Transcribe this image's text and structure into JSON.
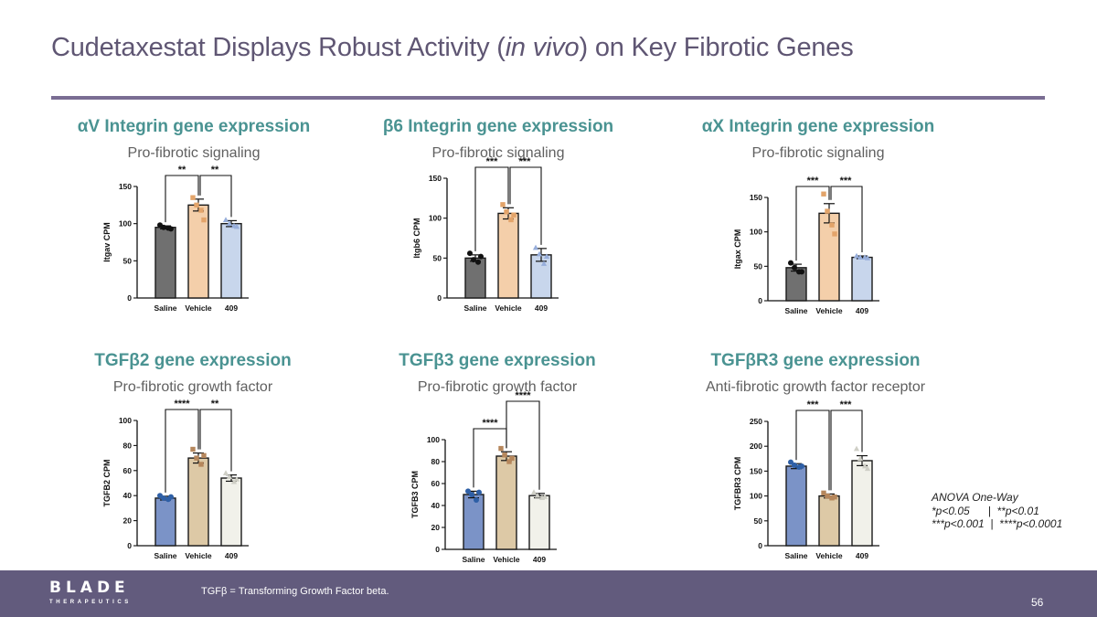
{
  "slide": {
    "title_before": "Cudetaxestat Displays Robust Activity (",
    "title_italic": "in vivo",
    "title_after": ") on Key Fibrotic Genes"
  },
  "panels": [
    {
      "title": "αV Integrin gene expression",
      "subtitle": "Pro-fibrotic signaling"
    },
    {
      "title": "β6 Integrin gene expression",
      "subtitle": "Pro-fibrotic signaling"
    },
    {
      "title": "αX Integrin gene expression",
      "subtitle": "Pro-fibrotic signaling"
    },
    {
      "title": "TGFβ2 gene expression",
      "subtitle": "Pro-fibrotic growth factor"
    },
    {
      "title": "TGFβ3 gene expression",
      "subtitle": "Pro-fibrotic growth factor"
    },
    {
      "title": "TGFβR3 gene expression",
      "subtitle": "Anti-fibrotic growth factor receptor"
    }
  ],
  "chart_data": [
    {
      "type": "bar",
      "ylabel": "Itgav CPM",
      "categories": [
        "Saline",
        "Vehicle",
        "409"
      ],
      "values": [
        95,
        125,
        100
      ],
      "errors": [
        2,
        8,
        4
      ],
      "points": [
        [
          98,
          95,
          94,
          93
        ],
        [
          135,
          125,
          118,
          105
        ],
        [
          105,
          100,
          97,
          96
        ]
      ],
      "ylim": [
        0,
        150
      ],
      "yticks": [
        0,
        50,
        100,
        150
      ],
      "fills": [
        "#707070",
        "#f4cfaa",
        "#c8d6ec"
      ],
      "point_colors": [
        "#111111",
        "#e3a46a",
        "#97aedb"
      ],
      "marker": [
        "circle",
        "square",
        "triangle"
      ],
      "significance": [
        {
          "from": 0,
          "to": 1,
          "label": "**"
        },
        {
          "from": 1,
          "to": 2,
          "label": "**"
        }
      ]
    },
    {
      "type": "bar",
      "ylabel": "Itgb6 CPM",
      "categories": [
        "Saline",
        "Vehicle",
        "409"
      ],
      "values": [
        50,
        106,
        54
      ],
      "errors": [
        4,
        7,
        8
      ],
      "points": [
        [
          56,
          48,
          45,
          52
        ],
        [
          117,
          108,
          98,
          104
        ],
        [
          63,
          55,
          43,
          52
        ]
      ],
      "ylim": [
        0,
        150
      ],
      "yticks": [
        0,
        50,
        100,
        150
      ],
      "fills": [
        "#707070",
        "#f4cfaa",
        "#c8d6ec"
      ],
      "point_colors": [
        "#111111",
        "#e3a46a",
        "#97aedb"
      ],
      "marker": [
        "circle",
        "square",
        "triangle"
      ],
      "significance": [
        {
          "from": 0,
          "to": 1,
          "label": "***"
        },
        {
          "from": 1,
          "to": 2,
          "label": "***"
        }
      ]
    },
    {
      "type": "bar",
      "ylabel": "Itgax CPM",
      "categories": [
        "Saline",
        "Vehicle",
        "409"
      ],
      "values": [
        48,
        127,
        63
      ],
      "errors": [
        5,
        14,
        2
      ],
      "points": [
        [
          55,
          48,
          42,
          42
        ],
        [
          155,
          130,
          110,
          97
        ],
        [
          65,
          63,
          63,
          62
        ]
      ],
      "ylim": [
        0,
        150
      ],
      "yticks": [
        0,
        50,
        100,
        150
      ],
      "fills": [
        "#707070",
        "#f4cfaa",
        "#c8d6ec"
      ],
      "point_colors": [
        "#111111",
        "#e3a46a",
        "#97aedb"
      ],
      "marker": [
        "circle",
        "square",
        "triangle"
      ],
      "significance": [
        {
          "from": 0,
          "to": 1,
          "label": "***"
        },
        {
          "from": 1,
          "to": 2,
          "label": "***"
        }
      ]
    },
    {
      "type": "bar",
      "ylabel": "TGFB2 CPM",
      "categories": [
        "Saline",
        "Vehicle",
        "409"
      ],
      "values": [
        38,
        70,
        54
      ],
      "errors": [
        1.5,
        4,
        2.5
      ],
      "points": [
        [
          40,
          38,
          37,
          39
        ],
        [
          77,
          70,
          65,
          72
        ],
        [
          58,
          55,
          51,
          53
        ]
      ],
      "ylim": [
        0,
        100
      ],
      "yticks": [
        0,
        20,
        40,
        60,
        80,
        100
      ],
      "fills": [
        "#7b93c7",
        "#ddc9a6",
        "#f1f1ea"
      ],
      "point_colors": [
        "#2e5fa6",
        "#b6875c",
        "#cfcfc6"
      ],
      "marker": [
        "circle",
        "square",
        "triangle"
      ],
      "significance": [
        {
          "from": 0,
          "to": 1,
          "label": "****"
        },
        {
          "from": 1,
          "to": 2,
          "label": "**"
        }
      ]
    },
    {
      "type": "bar",
      "ylabel": "TGFB3 CPM",
      "categories": [
        "Saline",
        "Vehicle",
        "409"
      ],
      "values": [
        50,
        85,
        49
      ],
      "errors": [
        3,
        4,
        2
      ],
      "points": [
        [
          53,
          50,
          45,
          52
        ],
        [
          92,
          86,
          80,
          83
        ],
        [
          52,
          49,
          47,
          48
        ]
      ],
      "ylim": [
        0,
        100
      ],
      "yticks": [
        0,
        20,
        40,
        60,
        80,
        100
      ],
      "fills": [
        "#7b93c7",
        "#ddc9a6",
        "#f1f1ea"
      ],
      "point_colors": [
        "#2e5fa6",
        "#b6875c",
        "#cfcfc6"
      ],
      "marker": [
        "circle",
        "square",
        "triangle"
      ],
      "significance": [
        {
          "from": 0,
          "to": 1,
          "label": "****",
          "level": 0
        },
        {
          "from": 1,
          "to": 2,
          "label": "****",
          "level": 1
        }
      ]
    },
    {
      "type": "bar",
      "ylabel": "TGFBR3 CPM",
      "categories": [
        "Saline",
        "Vehicle",
        "409"
      ],
      "values": [
        160,
        100,
        171
      ],
      "errors": [
        5,
        4,
        10
      ],
      "points": [
        [
          168,
          162,
          158,
          160
        ],
        [
          106,
          100,
          96,
          98
        ],
        [
          195,
          175,
          160,
          155
        ]
      ],
      "ylim": [
        0,
        250
      ],
      "yticks": [
        0,
        50,
        100,
        150,
        200,
        250
      ],
      "fills": [
        "#7b93c7",
        "#ddc9a6",
        "#f1f1ea"
      ],
      "point_colors": [
        "#2e5fa6",
        "#b6875c",
        "#cfcfc6"
      ],
      "marker": [
        "circle",
        "square",
        "triangle"
      ],
      "significance": [
        {
          "from": 0,
          "to": 1,
          "label": "***"
        },
        {
          "from": 1,
          "to": 2,
          "label": "***"
        }
      ]
    }
  ],
  "legend": {
    "title": "ANOVA One-Way",
    "line1": "*p<0.05      |  **p<0.01",
    "line2": "***p<0.001  |  ****p<0.0001"
  },
  "footer": {
    "brand_name": "BLADE",
    "brand_sub": "THERAPEUTICS",
    "footnote": "TGFβ = Transforming Growth Factor beta.",
    "page_number": "56",
    "bar_color": "#625b7d"
  }
}
